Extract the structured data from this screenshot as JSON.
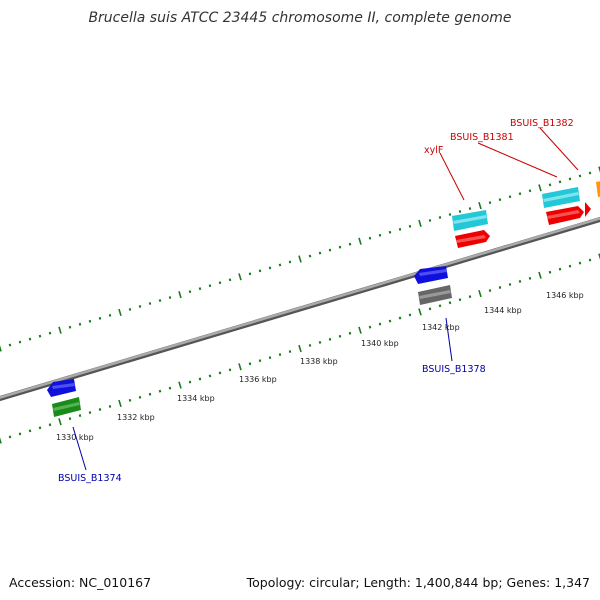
{
  "title": "Brucella suis ATCC 23445 chromosome II, complete genome",
  "footer": {
    "accession": "Accession: NC_010167",
    "summary": "Topology: circular; Length: 1,400,844 bp; Genes: 1,347"
  },
  "scale_labels": [
    "1330 kbp",
    "1332 kbp",
    "1334 kbp",
    "1336 kbp",
    "1338 kbp",
    "1340 kbp",
    "1342 kbp",
    "1344 kbp",
    "1346 kbp"
  ],
  "gene_labels": {
    "forward": [
      "xylF",
      "BSUIS_B1381",
      "BSUIS_B1382"
    ],
    "reverse": [
      "BSUIS_B1374",
      "BSUIS_B1378"
    ]
  },
  "colors": {
    "backbone": "#808080",
    "ticks": "#1a7a1a",
    "forward_label": "#cc0000",
    "reverse_label": "#0000aa",
    "cds_red": "#ee0000",
    "cds_cyan": "#22c8d8",
    "cds_blue": "#1010dd",
    "cds_green": "#1a8a1a",
    "cds_gray": "#666666",
    "cds_orange": "#ff9900"
  }
}
